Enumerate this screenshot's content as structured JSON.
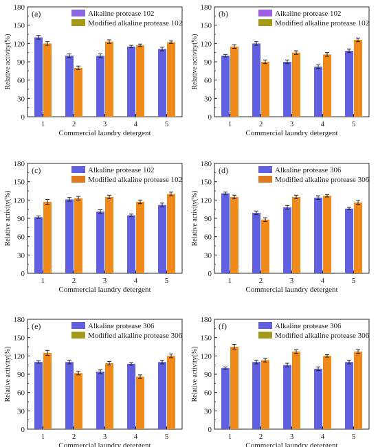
{
  "figure": {
    "panels": [
      {
        "label": "(a)",
        "legend": [
          "Alkaline protease 102",
          "Modified alkaline protease 102"
        ],
        "legend_swatches": [
          "#8a66e0",
          "#a39a1c"
        ]
      },
      {
        "label": "(b)",
        "legend": [
          "Alkaline protease 102",
          "Modified alkaline protease 102"
        ],
        "legend_swatches": [
          "#a05ee6",
          "#a39a1c"
        ]
      },
      {
        "label": "(c)",
        "legend": [
          "Alkaline protease 102",
          "Modified alkaline protease 102"
        ],
        "legend_swatches": [
          "#5f5fe0",
          "#e07a1e"
        ]
      },
      {
        "label": "(d)",
        "legend": [
          "Alkaline protease 306",
          "Modified alkaline protease 306"
        ],
        "legend_swatches": [
          "#5f5fe0",
          "#e07a1e"
        ]
      },
      {
        "label": "(e)",
        "legend": [
          "Alkaline protease 306",
          "Modified alkaline protease 306"
        ],
        "legend_swatches": [
          "#5f5fe0",
          "#a39a1c"
        ]
      },
      {
        "label": "(f)",
        "legend": [
          "Alkaline protease 306",
          "Modified alkaline protease 306"
        ],
        "legend_swatches": [
          "#5f5fe0",
          "#a39a1c"
        ]
      }
    ]
  },
  "colors": {
    "series_1": "#5f5fe0",
    "series_2": "#f08a1a",
    "axis": "#222222",
    "error_bar": "#222222"
  },
  "chart_data": [
    {
      "type": "bar",
      "panel": "(a)",
      "categories": [
        "1",
        "2",
        "3",
        "4",
        "5"
      ],
      "xlabel": "Commercial laundry detergent",
      "ylabel": "Relative activity(%)",
      "ylim": [
        0,
        180
      ],
      "yticks": [
        0,
        30,
        60,
        90,
        120,
        150,
        180
      ],
      "legend_position": "top-right",
      "series": [
        {
          "name": "Alkaline protease 102",
          "values": [
            130,
            100,
            100,
            115,
            111
          ],
          "errors": [
            3,
            3,
            3,
            2,
            3
          ]
        },
        {
          "name": "Modified alkaline protease 102",
          "values": [
            120,
            80,
            123,
            117,
            122
          ],
          "errors": [
            3,
            3,
            3,
            2,
            2
          ]
        }
      ]
    },
    {
      "type": "bar",
      "panel": "(b)",
      "categories": [
        "1",
        "2",
        "3",
        "4",
        "5"
      ],
      "xlabel": "Commercial laundry detergent",
      "ylabel": "Relative activity(%)",
      "ylim": [
        0,
        180
      ],
      "yticks": [
        0,
        30,
        60,
        90,
        120,
        150,
        180
      ],
      "legend_position": "top-right",
      "series": [
        {
          "name": "Alkaline protease 102",
          "values": [
            100,
            120,
            90,
            82,
            108
          ],
          "errors": [
            2,
            3,
            3,
            3,
            3
          ]
        },
        {
          "name": "Modified alkaline protease 102",
          "values": [
            115,
            90,
            105,
            102,
            126
          ],
          "errors": [
            3,
            3,
            3,
            3,
            3
          ]
        }
      ]
    },
    {
      "type": "bar",
      "panel": "(c)",
      "categories": [
        "1",
        "2",
        "3",
        "4",
        "5"
      ],
      "xlabel": "Commercial laundry detergent",
      "ylabel": "Relative activity(%)",
      "ylim": [
        0,
        180
      ],
      "yticks": [
        0,
        30,
        60,
        90,
        120,
        150,
        180
      ],
      "legend_position": "top-right",
      "series": [
        {
          "name": "Alkaline protease 102",
          "values": [
            92,
            121,
            101,
            95,
            112
          ],
          "errors": [
            2,
            3,
            3,
            2,
            3
          ]
        },
        {
          "name": "Modified alkaline protease 102",
          "values": [
            117,
            123,
            125,
            117,
            130
          ],
          "errors": [
            4,
            3,
            3,
            3,
            3
          ]
        }
      ]
    },
    {
      "type": "bar",
      "panel": "(d)",
      "categories": [
        "1",
        "2",
        "3",
        "4",
        "5"
      ],
      "xlabel": "Commercial laundry detergent",
      "ylabel": "Relative activity(%)",
      "ylim": [
        0,
        180
      ],
      "yticks": [
        0,
        30,
        60,
        90,
        120,
        150,
        180
      ],
      "legend_position": "top-right",
      "series": [
        {
          "name": "Alkaline protease 306",
          "values": [
            131,
            99,
            108,
            124,
            106
          ],
          "errors": [
            2,
            3,
            3,
            3,
            2
          ]
        },
        {
          "name": "Modified alkaline protease 306",
          "values": [
            125,
            88,
            125,
            127,
            116
          ],
          "errors": [
            3,
            3,
            3,
            2,
            3
          ]
        }
      ]
    },
    {
      "type": "bar",
      "panel": "(e)",
      "categories": [
        "1",
        "2",
        "3",
        "4",
        "5"
      ],
      "xlabel": "Commercial laundry detergent",
      "ylabel": "Relative activity(%)",
      "ylim": [
        0,
        180
      ],
      "yticks": [
        0,
        30,
        60,
        90,
        120,
        150,
        180
      ],
      "legend_position": "top-right",
      "series": [
        {
          "name": "Alkaline protease 306",
          "values": [
            110,
            110,
            94,
            107,
            110
          ],
          "errors": [
            2,
            3,
            3,
            2,
            3
          ]
        },
        {
          "name": "Modified alkaline protease 306",
          "values": [
            125,
            92,
            108,
            86,
            120
          ],
          "errors": [
            4,
            3,
            3,
            3,
            3
          ]
        }
      ]
    },
    {
      "type": "bar",
      "panel": "(f)",
      "categories": [
        "1",
        "2",
        "3",
        "4",
        "5"
      ],
      "xlabel": "Commercial laundry detergent",
      "ylabel": "Relative activity(%)",
      "ylim": [
        0,
        180
      ],
      "yticks": [
        0,
        30,
        60,
        90,
        120,
        150,
        180
      ],
      "legend_position": "top-right",
      "series": [
        {
          "name": "Alkaline protease 306",
          "values": [
            100,
            110,
            105,
            99,
            110
          ],
          "errors": [
            2,
            3,
            3,
            3,
            3
          ]
        },
        {
          "name": "Modified alkaline protease 306",
          "values": [
            135,
            113,
            127,
            120,
            127
          ],
          "errors": [
            4,
            3,
            3,
            2,
            3
          ]
        }
      ]
    }
  ]
}
